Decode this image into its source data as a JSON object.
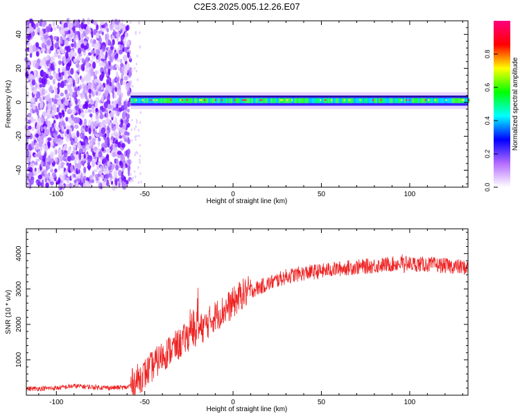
{
  "title": "C2E3.2025.005.12.26.E07",
  "chart_data": [
    {
      "type": "heatmap",
      "title": "C2E3.2025.005.12.26.E07",
      "xlabel": "Height of straight line (km)",
      "ylabel": "Frequency (Hz)",
      "xlim": [
        -117,
        133
      ],
      "ylim": [
        -50,
        48
      ],
      "x_ticks": [
        -100,
        -50,
        0,
        50,
        100
      ],
      "y_ticks": [
        -40,
        -20,
        0,
        20,
        40
      ],
      "colorbar": {
        "label": "Normalized spectral amplitude",
        "range": [
          0,
          1
        ],
        "ticks": [
          "0.0",
          "0.2",
          "0.4",
          "0.6",
          "0.8"
        ],
        "colors": [
          "#ffffff",
          "#b46cff",
          "#0000ff",
          "#00ffff",
          "#00ff00",
          "#ffff00",
          "#ff0000",
          "#ff0080"
        ]
      },
      "noise_region_km": [
        -117,
        -58
      ],
      "signal_band_hz": [
        -2,
        4
      ]
    },
    {
      "type": "line",
      "xlabel": "Height of straight line (km)",
      "ylabel": "SNR (10 * v/v)",
      "xlim": [
        -117,
        133
      ],
      "ylim": [
        0,
        4700
      ],
      "x_ticks": [
        -100,
        -50,
        0,
        50,
        100
      ],
      "y_ticks": [
        1000,
        2000,
        3000,
        4000
      ],
      "color": "#ee2222",
      "x": [
        -117,
        -100,
        -90,
        -80,
        -70,
        -60,
        -55,
        -50,
        -45,
        -40,
        -35,
        -30,
        -25,
        -20,
        -15,
        -10,
        -5,
        0,
        5,
        10,
        15,
        20,
        25,
        30,
        35,
        40,
        45,
        50,
        55,
        60,
        65,
        70,
        75,
        80,
        85,
        90,
        95,
        100,
        105,
        110,
        115,
        120,
        125,
        133
      ],
      "y": [
        180,
        200,
        260,
        230,
        210,
        220,
        400,
        600,
        850,
        1100,
        1300,
        1450,
        1700,
        1800,
        2000,
        2250,
        2400,
        2600,
        2850,
        2950,
        3050,
        3150,
        3250,
        3350,
        3400,
        3450,
        3480,
        3500,
        3550,
        3570,
        3600,
        3620,
        3640,
        3660,
        3680,
        3700,
        3720,
        3710,
        3700,
        3690,
        3680,
        3660,
        3640,
        3600
      ]
    }
  ]
}
